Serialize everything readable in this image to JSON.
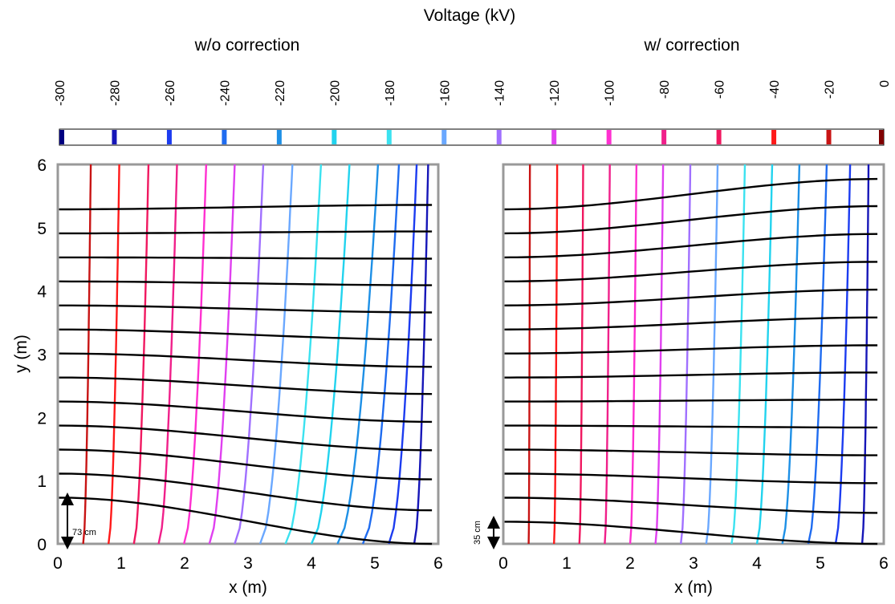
{
  "colorbar": {
    "title": "Voltage (kV)",
    "ticks": [
      "-300",
      "-280",
      "-260",
      "-240",
      "-220",
      "-200",
      "-180",
      "-160",
      "-140",
      "-120",
      "-100",
      "-80",
      "-60",
      "-40",
      "-20",
      "0"
    ],
    "colors": [
      "#000080",
      "#1616b8",
      "#1c3cf0",
      "#1f6cf0",
      "#1e90e6",
      "#22d3ee",
      "#3be2f0",
      "#6aa8ff",
      "#a070ff",
      "#e040f0",
      "#ff30d0",
      "#f0208a",
      "#f01860",
      "#ff1a1a",
      "#c81414",
      "#800000"
    ]
  },
  "chart_data": [
    {
      "type": "line",
      "title": "w/o correction",
      "xlabel": "x (m)",
      "ylabel": "y (m)",
      "xlim": [
        0,
        6
      ],
      "ylim": [
        0,
        6
      ],
      "xticks": [
        "0",
        "1",
        "2",
        "3",
        "4",
        "5",
        "6"
      ],
      "yticks": [
        "0",
        "1",
        "2",
        "3",
        "4",
        "5",
        "6"
      ],
      "annotation": "73 cm",
      "annotation_value": 0.73,
      "equipotentials": [
        {
          "kV": -20,
          "bottom_x": 0.4,
          "top_x": 0.52,
          "color": "#c81414"
        },
        {
          "kV": -40,
          "bottom_x": 0.8,
          "top_x": 0.97,
          "color": "#ff1a1a"
        },
        {
          "kV": -60,
          "bottom_x": 1.2,
          "top_x": 1.43,
          "color": "#f01860"
        },
        {
          "kV": -80,
          "bottom_x": 1.59,
          "top_x": 1.88,
          "color": "#f0208a"
        },
        {
          "kV": -100,
          "bottom_x": 1.99,
          "top_x": 2.34,
          "color": "#ff30d0"
        },
        {
          "kV": -120,
          "bottom_x": 2.39,
          "top_x": 2.79,
          "color": "#e040f0"
        },
        {
          "kV": -140,
          "bottom_x": 2.79,
          "top_x": 3.24,
          "color": "#a070ff"
        },
        {
          "kV": -160,
          "bottom_x": 3.19,
          "top_x": 3.7,
          "color": "#6aa8ff"
        },
        {
          "kV": -180,
          "bottom_x": 3.59,
          "top_x": 4.15,
          "color": "#3be2f0"
        },
        {
          "kV": -200,
          "bottom_x": 4.0,
          "top_x": 4.6,
          "color": "#22d3ee"
        },
        {
          "kV": -220,
          "bottom_x": 4.41,
          "top_x": 5.05,
          "color": "#1e90e6"
        },
        {
          "kV": -240,
          "bottom_x": 4.81,
          "top_x": 5.38,
          "color": "#1f6cf0"
        },
        {
          "kV": -260,
          "bottom_x": 5.22,
          "top_x": 5.66,
          "color": "#1c3cf0"
        },
        {
          "kV": -280,
          "bottom_x": 5.62,
          "top_x": 5.84,
          "color": "#1616b8"
        }
      ],
      "field_lines": [
        {
          "y_left": 0.73,
          "y_right": 0.0
        },
        {
          "y_left": 1.11,
          "y_right": 0.53
        },
        {
          "y_left": 1.49,
          "y_right": 1.02
        },
        {
          "y_left": 1.87,
          "y_right": 1.48
        },
        {
          "y_left": 2.25,
          "y_right": 1.93
        },
        {
          "y_left": 2.63,
          "y_right": 2.37
        },
        {
          "y_left": 3.01,
          "y_right": 2.8
        },
        {
          "y_left": 3.39,
          "y_right": 3.23
        },
        {
          "y_left": 3.77,
          "y_right": 3.66
        },
        {
          "y_left": 4.15,
          "y_right": 4.09
        },
        {
          "y_left": 4.53,
          "y_right": 4.51
        },
        {
          "y_left": 4.91,
          "y_right": 4.94
        },
        {
          "y_left": 5.29,
          "y_right": 5.36
        }
      ]
    },
    {
      "type": "line",
      "title": "w/ correction",
      "xlabel": "x (m)",
      "ylabel": "",
      "xlim": [
        0,
        6
      ],
      "ylim": [
        0,
        6
      ],
      "xticks": [
        "0",
        "1",
        "2",
        "3",
        "4",
        "5",
        "6"
      ],
      "yticks": [],
      "annotation": "35 cm",
      "annotation_value": 0.35,
      "equipotentials": [
        {
          "kV": -20,
          "bottom_x": 0.4,
          "top_x": 0.42,
          "color": "#c81414"
        },
        {
          "kV": -40,
          "bottom_x": 0.8,
          "top_x": 0.85,
          "color": "#ff1a1a"
        },
        {
          "kV": -60,
          "bottom_x": 1.2,
          "top_x": 1.26,
          "color": "#f01860"
        },
        {
          "kV": -80,
          "bottom_x": 1.6,
          "top_x": 1.68,
          "color": "#f0208a"
        },
        {
          "kV": -100,
          "bottom_x": 2.0,
          "top_x": 2.1,
          "color": "#ff30d0"
        },
        {
          "kV": -120,
          "bottom_x": 2.4,
          "top_x": 2.52,
          "color": "#e040f0"
        },
        {
          "kV": -140,
          "bottom_x": 2.8,
          "top_x": 2.95,
          "color": "#a070ff"
        },
        {
          "kV": -160,
          "bottom_x": 3.2,
          "top_x": 3.38,
          "color": "#6aa8ff"
        },
        {
          "kV": -180,
          "bottom_x": 3.6,
          "top_x": 3.81,
          "color": "#3be2f0"
        },
        {
          "kV": -200,
          "bottom_x": 4.0,
          "top_x": 4.24,
          "color": "#22d3ee"
        },
        {
          "kV": -220,
          "bottom_x": 4.4,
          "top_x": 4.67,
          "color": "#1e90e6"
        },
        {
          "kV": -240,
          "bottom_x": 4.81,
          "top_x": 5.1,
          "color": "#1f6cf0"
        },
        {
          "kV": -260,
          "bottom_x": 5.24,
          "top_x": 5.47,
          "color": "#1c3cf0"
        },
        {
          "kV": -280,
          "bottom_x": 5.66,
          "top_x": 5.76,
          "color": "#1616b8"
        }
      ],
      "field_lines": [
        {
          "y_left": 0.35,
          "y_right": 0.0
        },
        {
          "y_left": 0.73,
          "y_right": 0.49
        },
        {
          "y_left": 1.11,
          "y_right": 0.96
        },
        {
          "y_left": 1.49,
          "y_right": 1.4
        },
        {
          "y_left": 1.87,
          "y_right": 1.84
        },
        {
          "y_left": 2.25,
          "y_right": 2.28
        },
        {
          "y_left": 2.63,
          "y_right": 2.71
        },
        {
          "y_left": 3.01,
          "y_right": 3.14
        },
        {
          "y_left": 3.39,
          "y_right": 3.58
        },
        {
          "y_left": 3.77,
          "y_right": 4.02
        },
        {
          "y_left": 4.15,
          "y_right": 4.46
        },
        {
          "y_left": 4.53,
          "y_right": 4.9
        },
        {
          "y_left": 4.91,
          "y_right": 5.34
        },
        {
          "y_left": 5.29,
          "y_right": 5.77
        }
      ]
    }
  ]
}
